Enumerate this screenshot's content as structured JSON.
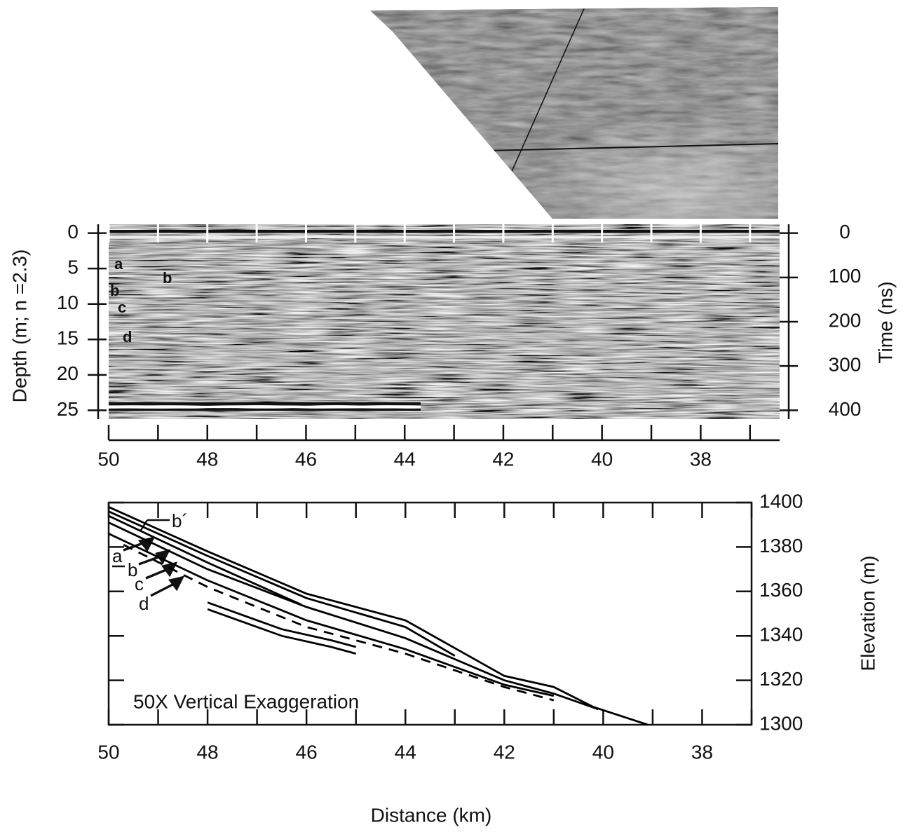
{
  "chart_data": [
    {
      "type": "radargram",
      "ylabel": "Depth (m; n =2.3)",
      "y2label": "Time (ns)",
      "xlim": [
        50,
        36.4
      ],
      "xticks": [
        50,
        48,
        46,
        44,
        42,
        40,
        38
      ],
      "xminor": [
        49,
        47,
        45,
        43,
        41,
        39,
        37
      ],
      "ylim": [
        -1.25,
        26.25
      ],
      "yticks": [
        0,
        5,
        10,
        15,
        20,
        25
      ],
      "y2lim": [
        -20,
        420
      ],
      "y2ticks": [
        0,
        100,
        200,
        300,
        400
      ],
      "annotations": [
        "a",
        "b",
        "b",
        "c",
        "d"
      ]
    },
    {
      "type": "line",
      "xlabel": "Distance (km)",
      "y2label": "Elevation (m)",
      "annotation": "50X Vertical Exaggeration",
      "layer_labels": [
        "b´",
        "a",
        "b",
        "c",
        "d"
      ],
      "xlim": [
        50,
        37
      ],
      "xticks": [
        50,
        48,
        46,
        44,
        42,
        40,
        38
      ],
      "xminor": [
        49,
        47,
        45,
        43,
        41,
        39,
        37
      ],
      "ylim": [
        1300,
        1400
      ],
      "yticks": [
        1300,
        1320,
        1340,
        1360,
        1380,
        1400
      ],
      "series": [
        {
          "color": "#000",
          "x": [
            50,
            48,
            46,
            44,
            42,
            41,
            40.2,
            39.1
          ],
          "values": [
            1398,
            1378,
            1359,
            1347,
            1322,
            1317,
            1308,
            1300
          ]
        },
        {
          "color": "#000",
          "x": [
            50,
            48,
            46,
            44,
            43
          ],
          "values": [
            1396,
            1376,
            1357,
            1344,
            1331
          ]
        },
        {
          "color": "#000",
          "x": [
            50,
            48,
            46.1
          ],
          "values": [
            1394,
            1373,
            1354
          ]
        },
        {
          "color": "#000",
          "x": [
            50,
            48,
            46,
            44,
            42,
            41,
            40.1
          ],
          "values": [
            1391,
            1370,
            1353,
            1339,
            1320,
            1314,
            1307
          ]
        },
        {
          "color": "#000",
          "x": [
            50,
            48,
            46,
            44,
            42,
            41
          ],
          "values": [
            1386,
            1365,
            1347,
            1334,
            1318,
            1313
          ]
        },
        {
          "color": "#000",
          "dashed": true,
          "x": [
            49.7,
            48,
            46,
            44,
            42,
            41
          ],
          "values": [
            1381,
            1362,
            1344,
            1332,
            1317,
            1311
          ]
        },
        {
          "color": "#000",
          "x": [
            48,
            46.5,
            45.5,
            45
          ],
          "values": [
            1355,
            1343,
            1338,
            1335
          ]
        },
        {
          "color": "#000",
          "x": [
            48,
            46.5,
            45.5,
            45
          ],
          "values": [
            1352,
            1340,
            1335,
            1332
          ]
        }
      ]
    }
  ]
}
